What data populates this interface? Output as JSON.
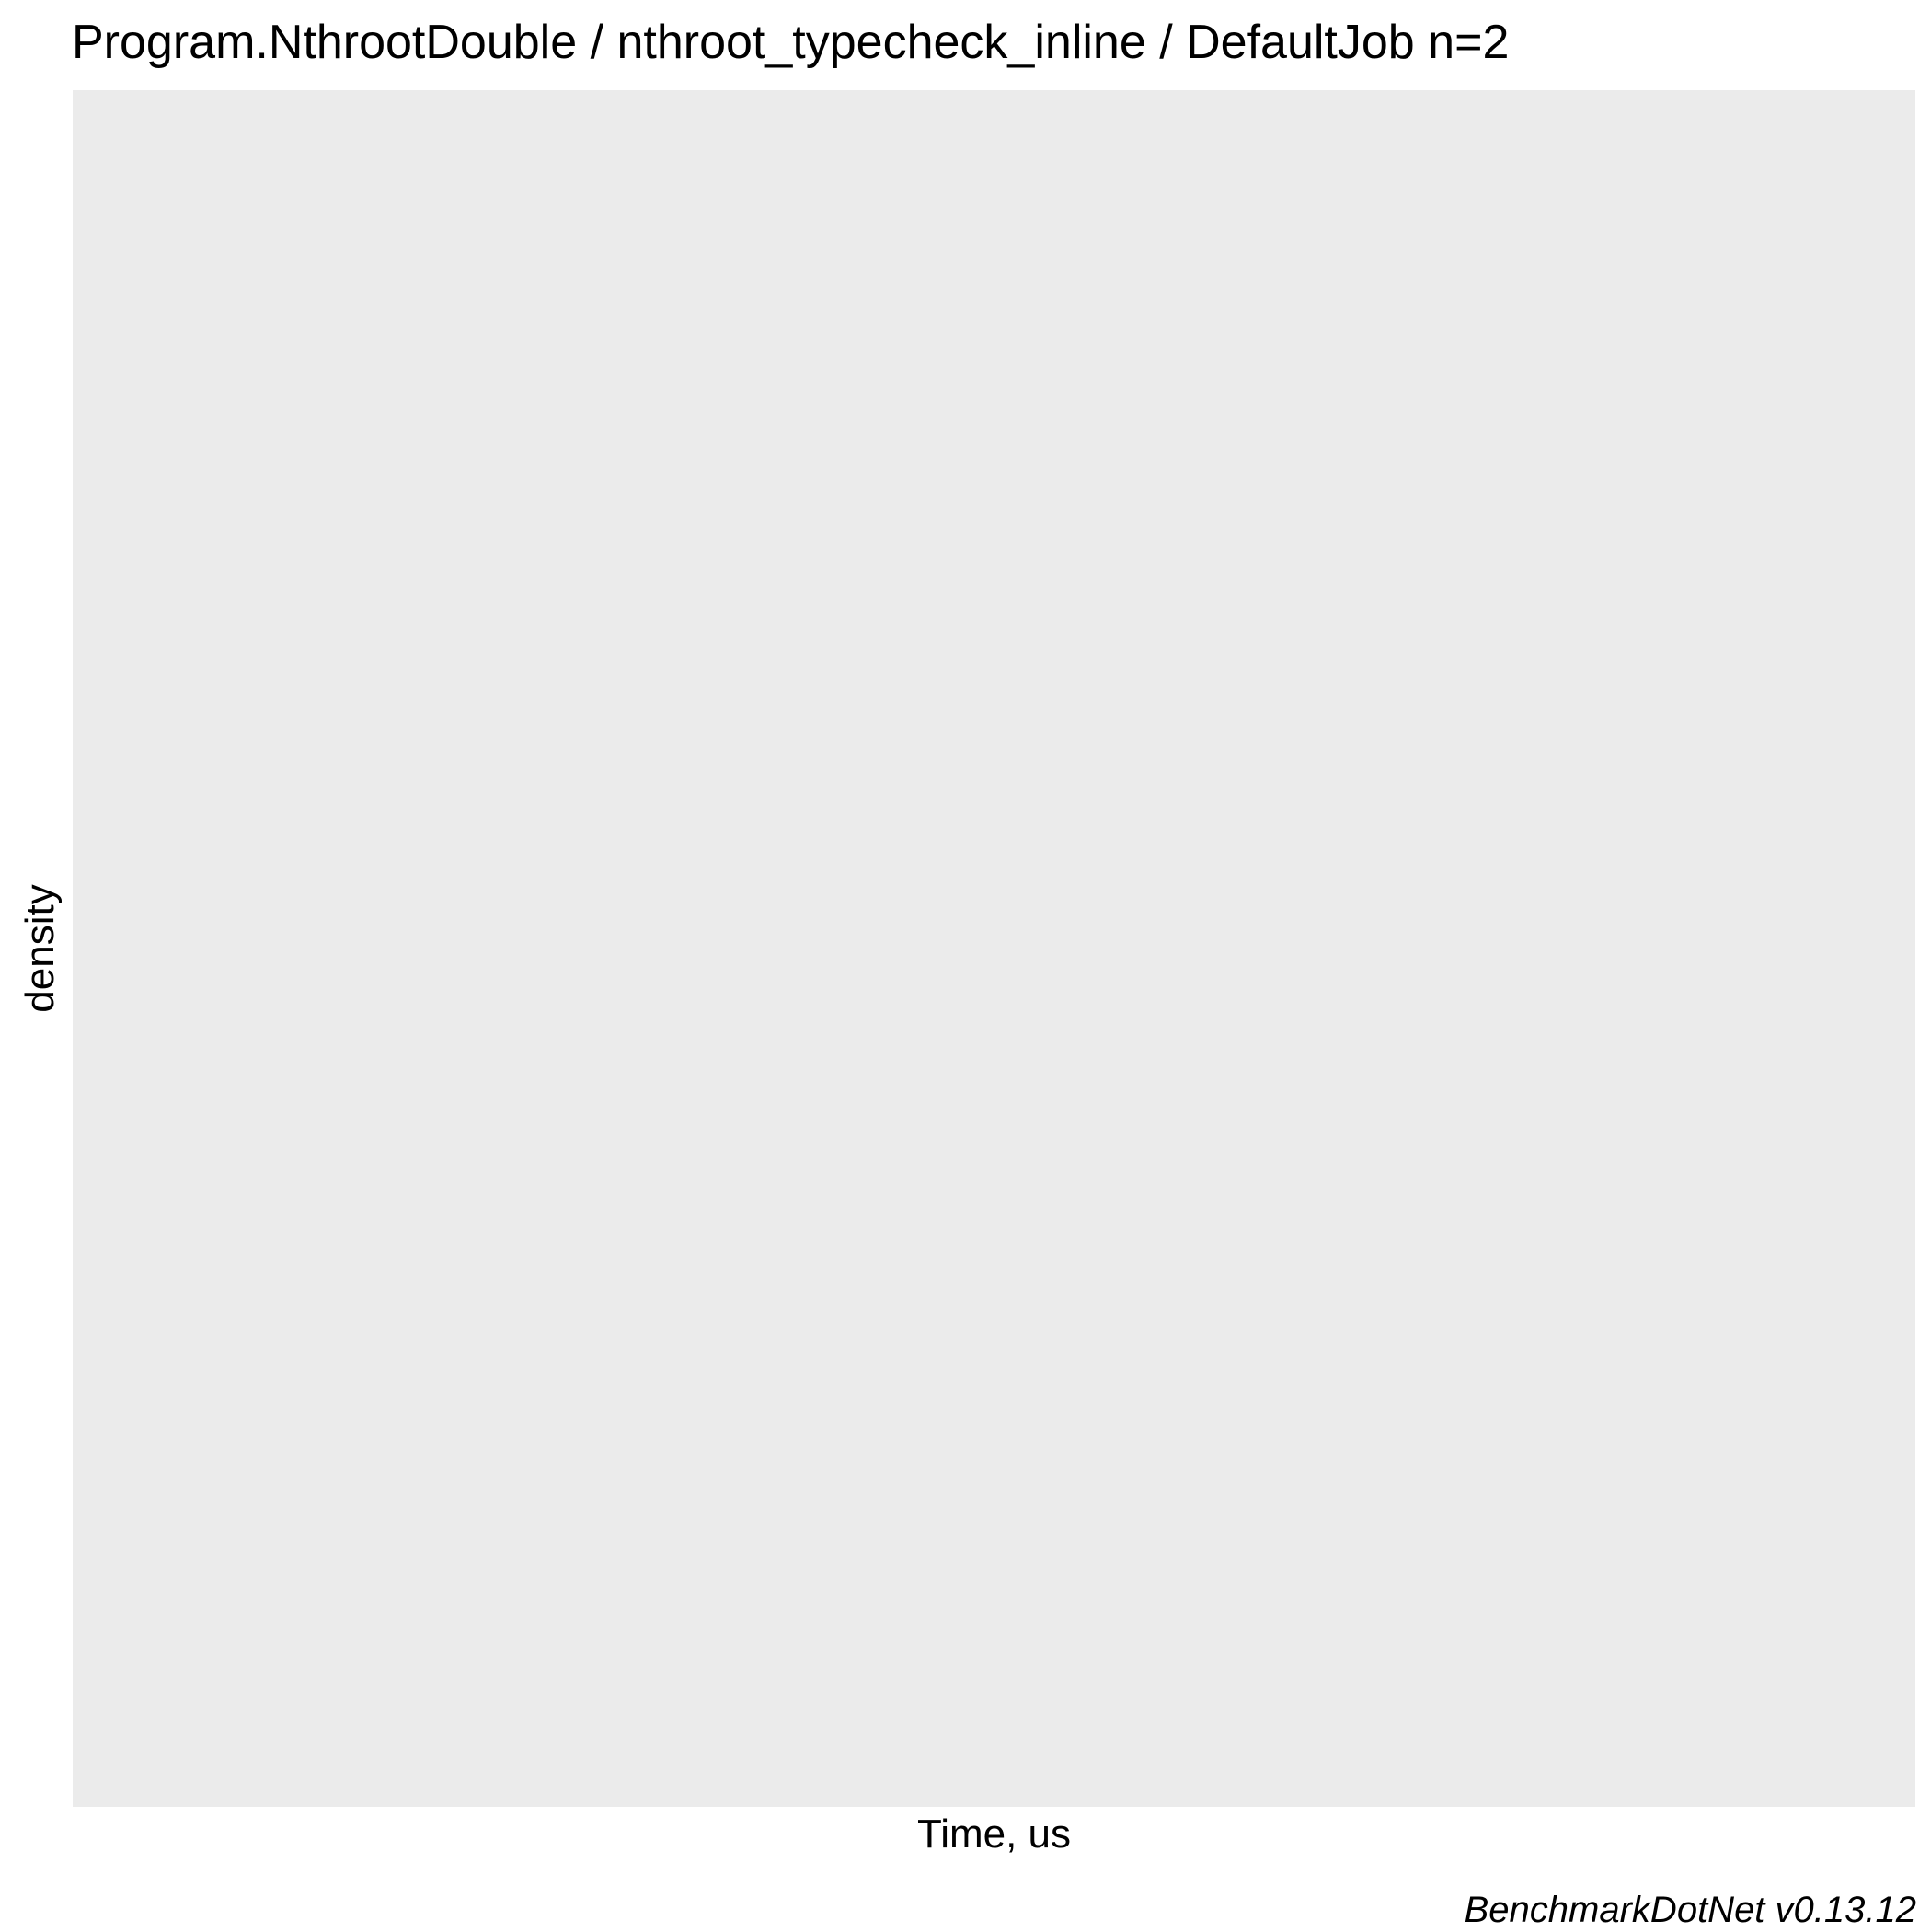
{
  "chart_data": {
    "type": "area",
    "title": "Program.NthrootDouble / nthroot_typecheck_inline / DefaultJob n=2",
    "xlabel": "Time, us",
    "ylabel": "density",
    "caption": "BenchmarkDotNet v0.13.12",
    "series": [],
    "grid": false,
    "legend": "none",
    "panel_color": "#ebebeb"
  }
}
